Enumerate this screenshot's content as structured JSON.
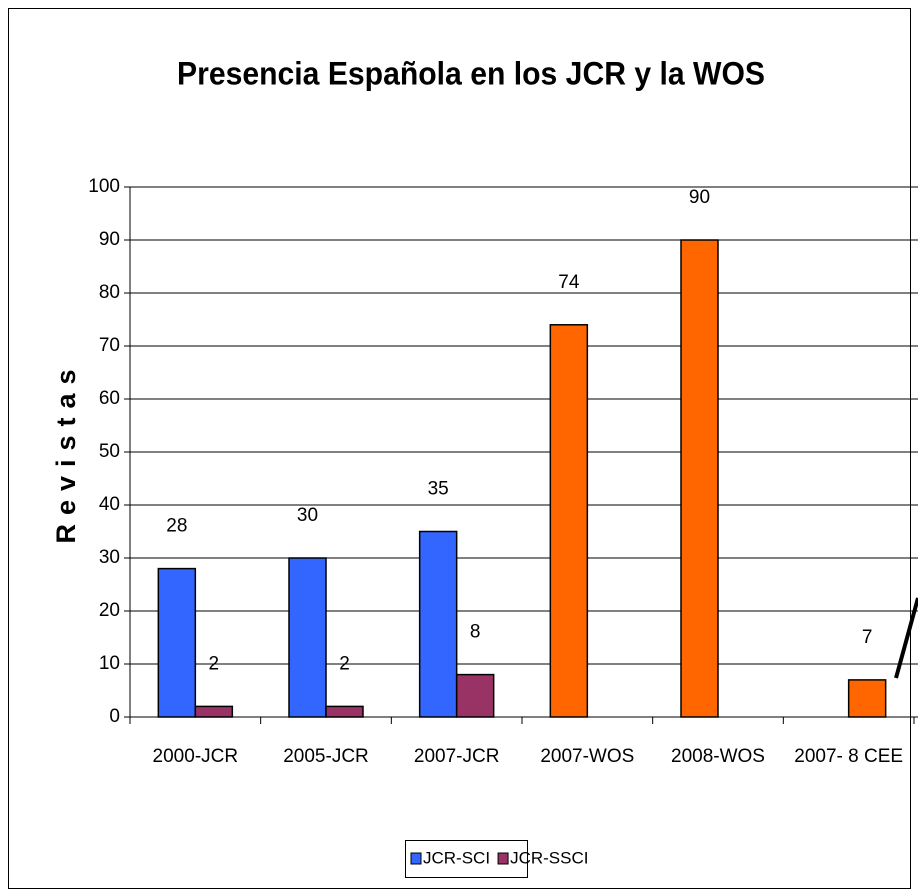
{
  "chart_data": {
    "type": "bar",
    "title": "Presencia Española en los JCR y la WOS",
    "y_label": "Revistas",
    "categories": [
      "2000-JCR",
      "2005-JCR",
      "2007-JCR",
      "2007-WOS",
      "2008-WOS",
      "2007- 8 CEE"
    ],
    "series": [
      {
        "name": "JCR-SCI",
        "color": "#3366ff",
        "bar_colors": [
          "#3366ff",
          "#3366ff",
          "#3366ff",
          "#ff6600",
          "#ff6600",
          "#3366ff"
        ],
        "values": [
          28,
          30,
          35,
          74,
          90,
          null
        ]
      },
      {
        "name": "JCR-SSCI",
        "color": "#993366",
        "bar_colors": [
          "#993366",
          "#993366",
          "#993366",
          "#993366",
          "#993366",
          "#ff6600"
        ],
        "values": [
          2,
          2,
          8,
          null,
          null,
          7
        ]
      }
    ],
    "ylim": [
      0,
      100
    ],
    "yticks": [
      0,
      10,
      20,
      30,
      40,
      50,
      60,
      70,
      80,
      90,
      100
    ],
    "grid": true,
    "legend": "bottom"
  }
}
